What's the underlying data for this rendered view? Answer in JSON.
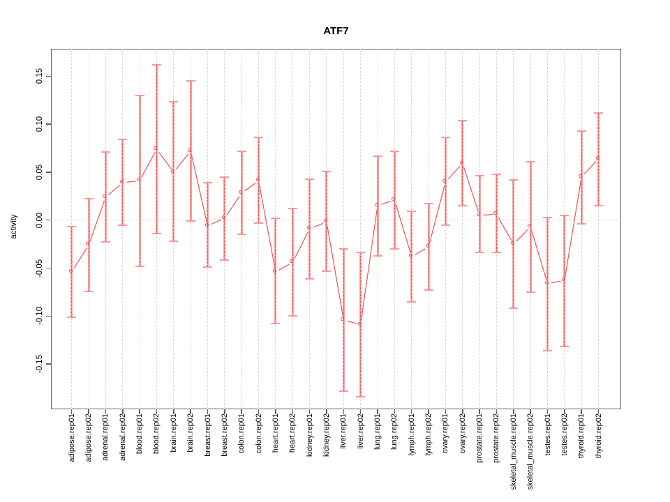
{
  "chart": {
    "title": "ATF7",
    "y_axis_label": "activity"
  },
  "chart_data": {
    "type": "line",
    "title": "ATF7",
    "xlabel": "",
    "ylabel": "activity",
    "ylim": [
      -0.197,
      0.179
    ],
    "ytick_values": [
      0.15,
      0.1,
      0.05,
      0,
      -0.05,
      -0.1,
      -0.15
    ],
    "ytick_labels": [
      "0.15",
      "0.10",
      "0.05",
      "0.00",
      "-0.05",
      "-0.10",
      "-0.15"
    ],
    "grid": {
      "vertical_gridlines": "dotted at every category",
      "zero_line": "dotted horizontal at 0"
    },
    "legend": "none",
    "marker": "open-circle",
    "categories": [
      "adipose.rep01",
      "adipose.rep02",
      "adrenal.rep01",
      "adrenal.rep02",
      "blood.rep01",
      "blood.rep02",
      "brain.rep01",
      "brain.rep02",
      "breast.rep01",
      "breast.rep02",
      "colon.rep01",
      "colon.rep02",
      "heart.rep01",
      "heart.rep02",
      "kidney.rep01",
      "kidney.rep02",
      "liver.rep01",
      "liver.rep02",
      "lung.rep01",
      "lung.rep02",
      "lymph.rep01",
      "lymph.rep02",
      "ovary.rep01",
      "ovary.rep02",
      "prostate.rep01",
      "prostate.rep02",
      "skeletal_muscle.rep01",
      "skeletal_muscle.rep02",
      "testes.rep01",
      "testes.rep02",
      "thyroid.rep01",
      "thyroid.rep02"
    ],
    "series": [
      {
        "name": "activity",
        "values": [
          -0.054,
          -0.026,
          0.024,
          0.039,
          0.041,
          0.074,
          0.05,
          0.072,
          -0.006,
          0.002,
          0.028,
          0.041,
          -0.054,
          -0.044,
          -0.009,
          -0.002,
          -0.104,
          -0.109,
          0.015,
          0.021,
          -0.038,
          -0.028,
          0.04,
          0.059,
          0.005,
          0.006,
          -0.025,
          -0.007,
          -0.066,
          -0.063,
          0.045,
          0.064
        ],
        "error_upper": [
          -0.007,
          0.022,
          0.071,
          0.084,
          0.13,
          0.162,
          0.123,
          0.145,
          0.039,
          0.045,
          0.072,
          0.086,
          0.002,
          0.012,
          0.043,
          0.051,
          -0.03,
          -0.034,
          0.067,
          0.072,
          0.009,
          0.017,
          0.086,
          0.104,
          0.046,
          0.048,
          0.042,
          0.061,
          0.003,
          0.005,
          0.093,
          0.112
        ],
        "error_lower": [
          -0.101,
          -0.074,
          -0.023,
          -0.005,
          -0.048,
          -0.014,
          -0.022,
          -0.001,
          -0.049,
          -0.042,
          -0.015,
          -0.003,
          -0.108,
          -0.1,
          -0.061,
          -0.053,
          -0.178,
          -0.184,
          -0.037,
          -0.03,
          -0.085,
          -0.073,
          -0.005,
          0.015,
          -0.034,
          -0.034,
          -0.092,
          -0.075,
          -0.136,
          -0.132,
          -0.004,
          0.015
        ]
      }
    ],
    "colors": {
      "line": "#f25050",
      "point": "#f04848",
      "error_bar": "#fba3a3",
      "error_cap": "#fb9898",
      "error_dash": "#f05050",
      "grid": "#cfcfcf",
      "axis": "#5f5f5f",
      "text": "#000000",
      "background": "#ffffff"
    }
  }
}
